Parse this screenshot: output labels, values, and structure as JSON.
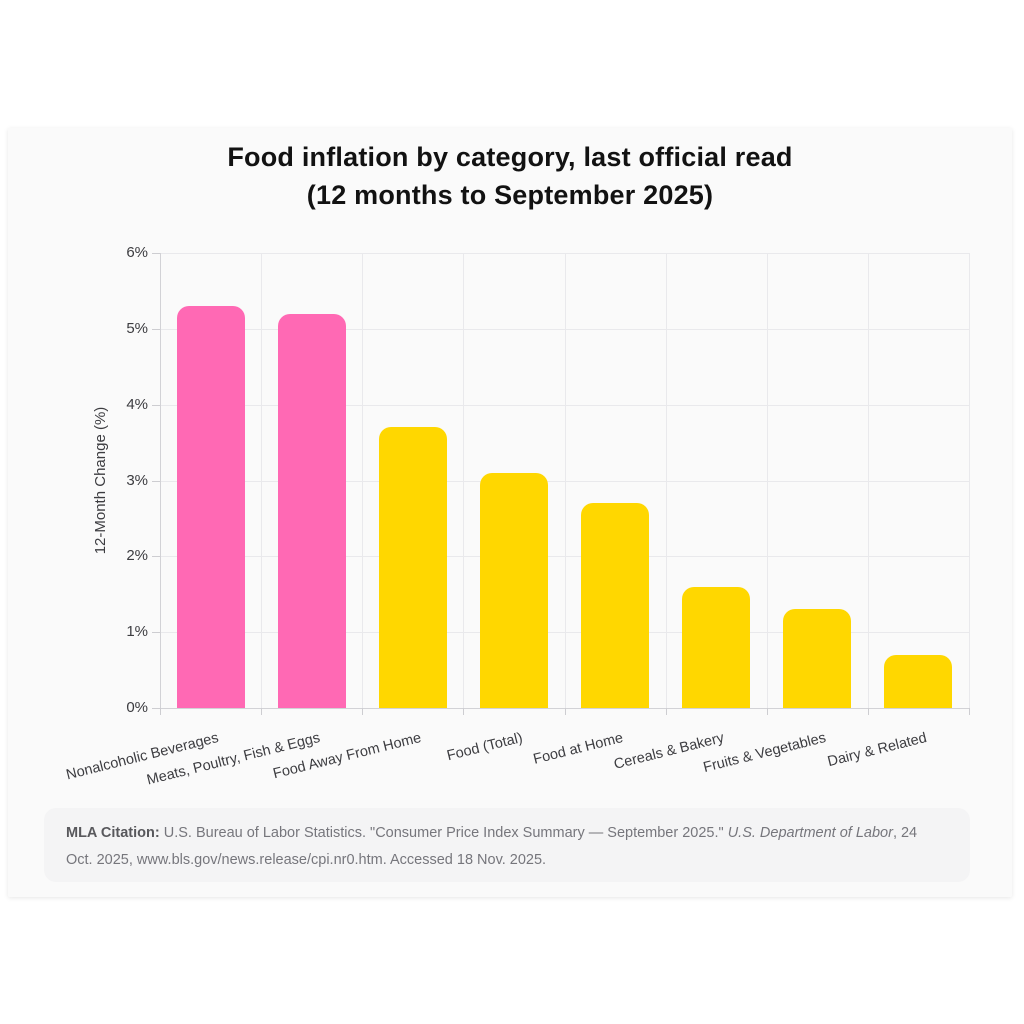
{
  "colors": {
    "highlight": "#ff69b4",
    "default_bar": "#ffd700",
    "card_background": "#fafafa",
    "grid": "#e9e9ec",
    "axis": "#d2d2d6"
  },
  "chart_data": {
    "type": "bar",
    "title": "Food inflation by category, last official read (12 months to September 2025)",
    "title_lines": [
      "Food inflation by category, last official read",
      "(12 months to September 2025)"
    ],
    "xlabel": "",
    "ylabel": "12-Month Change (%)",
    "ylim": [
      0,
      6
    ],
    "yticks": [
      0,
      1,
      2,
      3,
      4,
      5,
      6
    ],
    "ytick_suffix": "%",
    "grid": true,
    "legend": "none",
    "categories": [
      "Nonalcoholic Beverages",
      "Meats, Poultry, Fish & Eggs",
      "Food Away From Home",
      "Food (Total)",
      "Food at Home",
      "Cereals & Bakery",
      "Fruits & Vegetables",
      "Dairy & Related"
    ],
    "values": [
      5.3,
      5.2,
      3.7,
      3.1,
      2.7,
      1.6,
      1.3,
      0.7
    ],
    "bar_colors": [
      "#ff69b4",
      "#ff69b4",
      "#ffd700",
      "#ffd700",
      "#ffd700",
      "#ffd700",
      "#ffd700",
      "#ffd700"
    ]
  },
  "citation": {
    "label": "MLA Citation:",
    "text_before_italic": " U.S. Bureau of Labor Statistics. \"Consumer Price Index Summary — September 2025.\" ",
    "italic_text": "U.S. Department of Labor",
    "text_after_italic": ", 24 Oct. 2025, www.bls.gov/news.release/cpi.nr0.htm. Accessed 18 Nov. 2025."
  }
}
